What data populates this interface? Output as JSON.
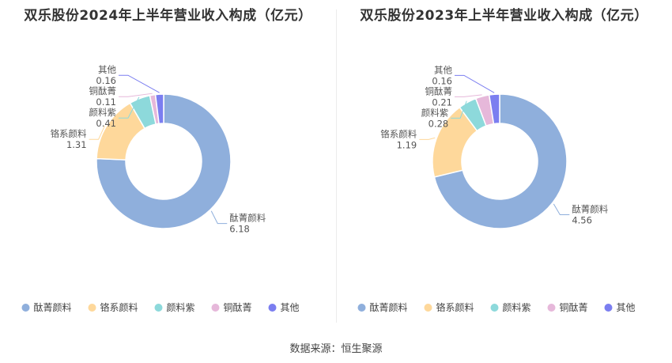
{
  "source_label": "数据来源：恒生聚源",
  "colors": [
    "#8fafdc",
    "#fed89b",
    "#8dd9db",
    "#e6b8da",
    "#7b7ef0"
  ],
  "chart_data": [
    {
      "type": "pie",
      "title": "双乐股份2024年上半年营业收入构成（亿元）",
      "categories": [
        "酞菁颜料",
        "铬系颜料",
        "颜料紫",
        "铜酞菁",
        "其他"
      ],
      "values": [
        6.18,
        1.31,
        0.41,
        0.11,
        0.16
      ],
      "value_labels": [
        "6.18",
        "1.31",
        "0.41",
        "0.11",
        "0.16"
      ],
      "legend": "bottom"
    },
    {
      "type": "pie",
      "title": "双乐股份2023年上半年营业收入构成（亿元）",
      "categories": [
        "酞菁颜料",
        "铬系颜料",
        "颜料紫",
        "铜酞菁",
        "其他"
      ],
      "values": [
        4.56,
        1.19,
        0.28,
        0.21,
        0.16
      ],
      "value_labels": [
        "4.56",
        "1.19",
        "0.28",
        "0.21",
        "0.16"
      ],
      "legend": "bottom"
    }
  ]
}
